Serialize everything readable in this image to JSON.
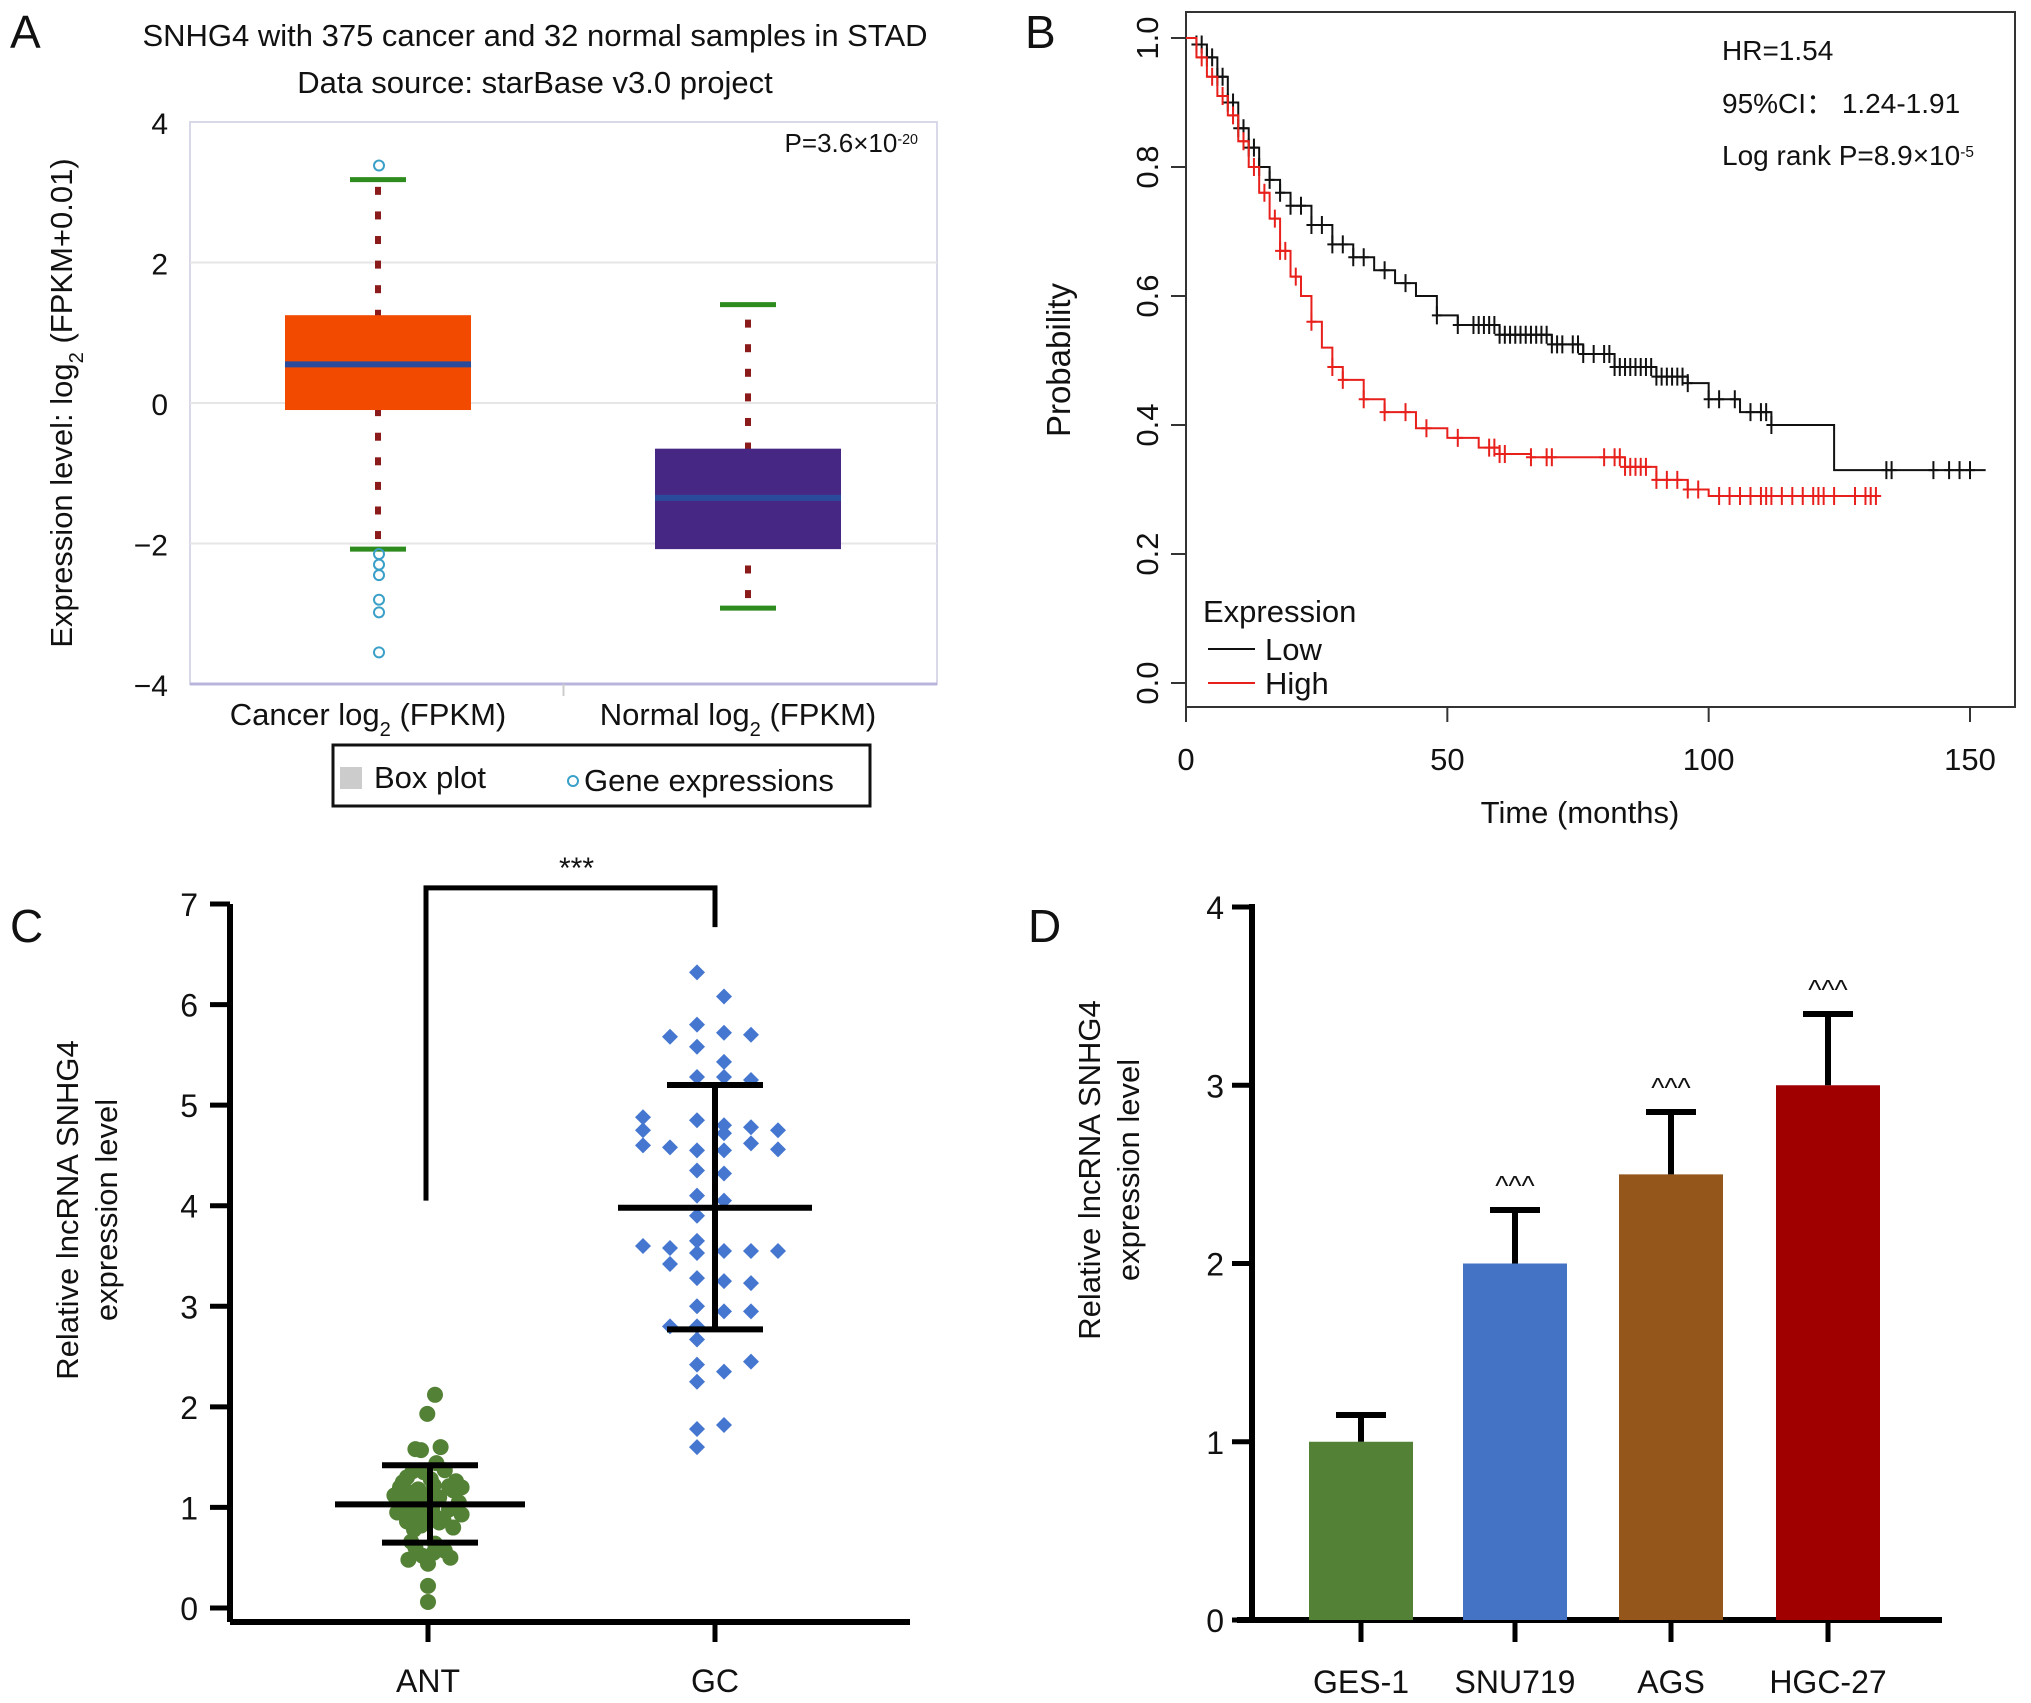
{
  "panels": {
    "A": "A",
    "B": "B",
    "C": "C",
    "D": "D"
  },
  "chart_data": [
    {
      "id": "A",
      "type": "box",
      "title": "SNHG4 with 375 cancer and 32 normal samples in STAD",
      "subtitle": "Data source: starBase v3.0 project",
      "ylabel": "Expression level: log2 (FPKM+0.01)",
      "ylabel_parts": {
        "prefix": "Expression level: log",
        "sub": "2",
        "suffix": " (FPKM+0.01)"
      },
      "ylim": [
        -4,
        4
      ],
      "yticks": [
        4,
        2,
        0,
        -2,
        -4
      ],
      "ytick_labels": [
        "4",
        "2",
        "0",
        "−2",
        "−4"
      ],
      "grid": true,
      "annotation": {
        "base": "P=3.6×10",
        "sup": "-20"
      },
      "categories": [
        {
          "prefix": "Cancer log",
          "sub": "2",
          "suffix": " (FPKM)"
        },
        {
          "prefix": "Normal log",
          "sub": "2",
          "suffix": " (FPKM)"
        }
      ],
      "boxes": [
        {
          "name": "Cancer",
          "q1": -0.1,
          "median": 0.55,
          "q3": 1.25,
          "whisker_low": -2.08,
          "whisker_high": 3.18,
          "color": "#f24b00",
          "outliers": [
            3.38,
            -2.15,
            -2.3,
            -2.45,
            -2.8,
            -2.98,
            -3.55
          ]
        },
        {
          "name": "Normal",
          "q1": -2.08,
          "median": -1.35,
          "q3": -0.65,
          "whisker_low": -2.92,
          "whisker_high": 1.4,
          "color": "#462884",
          "outliers": []
        }
      ],
      "median_color": "#2a4b9b",
      "whisker_color": "#2e8b1e",
      "dot_color": "#8b1a1a",
      "outlier_color": "#3aa0c8",
      "legend": {
        "box_label": "Box plot",
        "dot_label": "Gene expressions",
        "placement": "bottom"
      }
    },
    {
      "id": "B",
      "type": "line",
      "subtype": "kaplan-meier",
      "xlabel": "Time (months)",
      "ylabel": "Probability",
      "xlim": [
        0,
        155
      ],
      "ylim": [
        0,
        1
      ],
      "xticks": [
        0,
        50,
        100,
        150
      ],
      "yticks": [
        0.0,
        0.2,
        0.4,
        0.6,
        0.8,
        1.0
      ],
      "ytick_labels": [
        "0.0",
        "0.2",
        "0.4",
        "0.6",
        "0.8",
        "1.0"
      ],
      "annotations": [
        "HR=1.54",
        "95%CI： 1.24-1.91"
      ],
      "logrank": {
        "base": "Log rank P=8.9×10",
        "sup": "-5"
      },
      "legend": {
        "title": "Expression",
        "placement": "bottom-left"
      },
      "series": [
        {
          "name": "Low",
          "color": "#111111",
          "points": [
            [
              0,
              1.0
            ],
            [
              2,
              0.99
            ],
            [
              4,
              0.97
            ],
            [
              6,
              0.94
            ],
            [
              8,
              0.9
            ],
            [
              10,
              0.86
            ],
            [
              12,
              0.83
            ],
            [
              14,
              0.8
            ],
            [
              16,
              0.78
            ],
            [
              18,
              0.76
            ],
            [
              20,
              0.74
            ],
            [
              24,
              0.71
            ],
            [
              28,
              0.68
            ],
            [
              32,
              0.66
            ],
            [
              36,
              0.64
            ],
            [
              40,
              0.62
            ],
            [
              44,
              0.6
            ],
            [
              48,
              0.57
            ],
            [
              52,
              0.555
            ],
            [
              60,
              0.54
            ],
            [
              70,
              0.525
            ],
            [
              76,
              0.51
            ],
            [
              82,
              0.49
            ],
            [
              90,
              0.475
            ],
            [
              96,
              0.465
            ],
            [
              100,
              0.44
            ],
            [
              106,
              0.42
            ],
            [
              112,
              0.4
            ],
            [
              124,
              0.4
            ],
            [
              124,
              0.33
            ],
            [
              153,
              0.33
            ]
          ],
          "censor_x": [
            2,
            3,
            4,
            5,
            6,
            7,
            8,
            9,
            10,
            11,
            12,
            13,
            14,
            16,
            18,
            20,
            22,
            24,
            26,
            28,
            30,
            32,
            34,
            38,
            42,
            48,
            52,
            55,
            56,
            57,
            58,
            59,
            60,
            61,
            62,
            63,
            64,
            65,
            66,
            67,
            68,
            69,
            70,
            71,
            72,
            74,
            75,
            76,
            78,
            80,
            81,
            82,
            83,
            84,
            85,
            86,
            87,
            88,
            89,
            90,
            91,
            92,
            93,
            94,
            95,
            96,
            100,
            102,
            105,
            108,
            110,
            111,
            112,
            134,
            135,
            143,
            146,
            148,
            150
          ]
        },
        {
          "name": "High",
          "color": "#e8201c",
          "points": [
            [
              0,
              1.0
            ],
            [
              2,
              0.97
            ],
            [
              4,
              0.94
            ],
            [
              6,
              0.91
            ],
            [
              8,
              0.88
            ],
            [
              10,
              0.84
            ],
            [
              12,
              0.8
            ],
            [
              14,
              0.76
            ],
            [
              16,
              0.72
            ],
            [
              18,
              0.67
            ],
            [
              20,
              0.63
            ],
            [
              22,
              0.6
            ],
            [
              24,
              0.56
            ],
            [
              26,
              0.52
            ],
            [
              28,
              0.49
            ],
            [
              30,
              0.47
            ],
            [
              34,
              0.44
            ],
            [
              38,
              0.42
            ],
            [
              44,
              0.395
            ],
            [
              50,
              0.38
            ],
            [
              56,
              0.365
            ],
            [
              60,
              0.355
            ],
            [
              66,
              0.35
            ],
            [
              76,
              0.35
            ],
            [
              84,
              0.335
            ],
            [
              90,
              0.315
            ],
            [
              96,
              0.3
            ],
            [
              100,
              0.29
            ],
            [
              133,
              0.29
            ]
          ],
          "censor_x": [
            3,
            5,
            7,
            9,
            11,
            13,
            15,
            17,
            18,
            19,
            21,
            24,
            28,
            30,
            34,
            38,
            42,
            46,
            52,
            58,
            59,
            60,
            61,
            66,
            69,
            70,
            80,
            82,
            83,
            84,
            85,
            86,
            87,
            88,
            90,
            92,
            94,
            96,
            98,
            102,
            104,
            106,
            108,
            110,
            111,
            112,
            114,
            116,
            118,
            120,
            121,
            122,
            124,
            128,
            130,
            131,
            132
          ]
        }
      ]
    },
    {
      "id": "C",
      "type": "scatter",
      "subtype": "dot-plot",
      "ylabel": "Relative lncRNA SNHG4 expression level",
      "ylabel_lines": [
        "Relative lncRNA SNHG4",
        "expression level"
      ],
      "ylim": [
        0,
        7
      ],
      "yticks": [
        0,
        1,
        2,
        3,
        4,
        5,
        6,
        7
      ],
      "categories": [
        "ANT",
        "GC"
      ],
      "significance": "***",
      "groups": [
        {
          "name": "ANT",
          "color": "#538135",
          "marker": "circle",
          "mean": 1.03,
          "sd_low": 0.65,
          "sd_high": 1.42,
          "values": [
            2.12,
            1.93,
            1.57,
            1.58,
            1.6,
            1.44,
            1.37,
            1.36,
            1.35,
            1.3,
            1.28,
            1.26,
            1.25,
            1.22,
            1.21,
            1.2,
            1.2,
            1.18,
            1.17,
            1.15,
            1.12,
            1.12,
            1.1,
            1.08,
            1.05,
            1.05,
            1.02,
            1.0,
            0.98,
            0.98,
            0.95,
            0.93,
            0.92,
            0.9,
            0.9,
            0.88,
            0.86,
            0.85,
            0.82,
            0.8,
            0.78,
            0.66,
            0.64,
            0.6,
            0.57,
            0.55,
            0.52,
            0.5,
            0.48,
            0.44,
            0.22,
            0.06
          ],
          "offsets": [
            0.5,
            -0.05,
            -0.5,
            -0.9,
            0.9,
            0.6,
            1.2,
            -1.1,
            -0.3,
            -1.5,
            0.2,
            2.0,
            -1.8,
            0.4,
            1.5,
            -2.0,
            2.4,
            -0.7,
            1.8,
            -1.3,
            -2.4,
            0.0,
            0.8,
            -0.9,
            -1.8,
            2.2,
            -0.3,
            -1.3,
            0.3,
            1.5,
            -2.2,
            2.4,
            -0.8,
            -0.1,
            0.6,
            1.1,
            -1.5,
            0.8,
            -0.5,
            1.8,
            -1.0,
            -1.2,
            0.5,
            -0.9,
            1.2,
            0.4,
            -0.4,
            1.6,
            -1.4,
            0.0,
            0.0,
            0.0
          ]
        },
        {
          "name": "GC",
          "color": "#4677d0",
          "marker": "diamond",
          "mean": 3.98,
          "sd_low": 2.77,
          "sd_high": 5.2,
          "values": [
            6.32,
            6.08,
            5.8,
            5.72,
            5.7,
            5.68,
            5.58,
            5.43,
            5.28,
            5.28,
            5.25,
            4.88,
            4.85,
            4.8,
            4.78,
            4.75,
            4.75,
            4.72,
            4.62,
            4.6,
            4.58,
            4.56,
            4.55,
            4.55,
            4.35,
            4.32,
            4.1,
            4.05,
            3.9,
            3.65,
            3.6,
            3.58,
            3.55,
            3.55,
            3.55,
            3.53,
            3.42,
            3.28,
            3.25,
            3.23,
            3.0,
            2.95,
            2.95,
            2.8,
            2.8,
            2.67,
            2.45,
            2.42,
            2.35,
            2.25,
            1.82,
            1.78,
            1.6
          ],
          "offsets": [
            0,
            1,
            0,
            1,
            2,
            -1,
            0,
            1,
            0,
            1,
            2,
            -2,
            0,
            1,
            2,
            -2,
            3,
            1,
            2,
            -2,
            -1,
            3,
            0,
            1,
            0,
            1,
            0,
            1,
            0,
            0,
            -2,
            -1,
            1,
            2,
            3,
            0,
            -1,
            0,
            1,
            2,
            0,
            1,
            2,
            0,
            -1,
            0,
            2,
            0,
            1,
            0,
            1,
            0,
            0
          ]
        }
      ]
    },
    {
      "id": "D",
      "type": "bar",
      "ylabel": "Relative lncRNA SNHG4 expression level",
      "ylabel_lines": [
        "Relative lncRNA SNHG4",
        "expression level"
      ],
      "ylim": [
        0,
        4
      ],
      "yticks": [
        0,
        1,
        2,
        3,
        4
      ],
      "categories": [
        "GES-1",
        "SNU719",
        "AGS",
        "HGC-27"
      ],
      "values": [
        1.0,
        2.0,
        2.5,
        3.0
      ],
      "errors": [
        0.15,
        0.3,
        0.35,
        0.4
      ],
      "colors": [
        "#538135",
        "#4472c4",
        "#94561a",
        "#a00000"
      ],
      "significance": [
        "",
        "^^^",
        "^^^",
        "^^^"
      ]
    }
  ]
}
